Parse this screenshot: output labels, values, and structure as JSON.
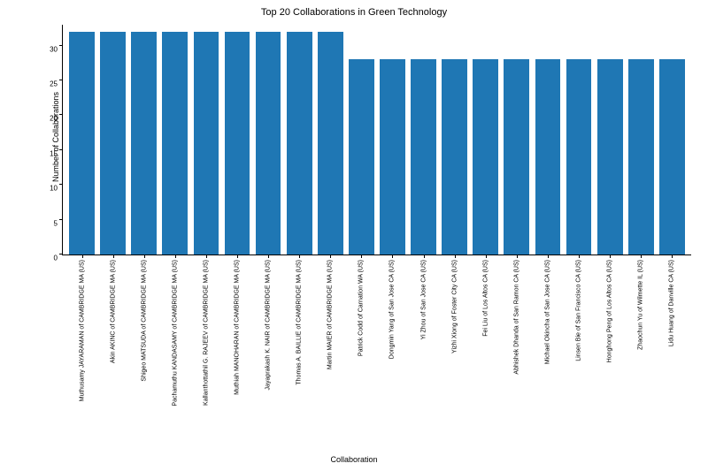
{
  "chart": {
    "type": "bar",
    "title": "Top 20 Collaborations in Green Technology",
    "title_fontsize": 11,
    "xlabel": "Collaboration",
    "ylabel": "Number of Collaborations",
    "label_fontsize": 9,
    "tick_fontsize": 8,
    "xtick_fontsize": 7,
    "background_color": "#ffffff",
    "bar_color": "#1f77b4",
    "axis_color": "#000000",
    "bar_width": 0.82,
    "ylim": [
      0,
      33
    ],
    "yticks": [
      0,
      5,
      10,
      15,
      20,
      25,
      30
    ],
    "categories": [
      "Muthusamy JAYARAMAN of CAMBRIDGE MA (US)",
      "Akin AKINC of CAMBRIDGE MA (US)",
      "Shigeo MATSUDA of CAMBRIDGE MA (US)",
      "Pachamuthu KANDASAMY of CAMBRIDGE MA (US)",
      "Kallanthottathil G. RAJEEV of CAMBRIDGE MA (US)",
      "Muthiah MANOHARAN of CAMBRIDGE MA (US)",
      "Jayaprakash K. NAIR of CAMBRIDGE MA (US)",
      "Thomas A. BAILLIE of CAMBRIDGE MA (US)",
      "Martin MAIER of CAMBRIDGE MA (US)",
      "Patrick Codd of Carnation WA (US)",
      "Dongmin Yang of San Jose CA (US)",
      "Yi Zhou of San Jose CA (US)",
      "Yizhi Xiong of Foster City CA (US)",
      "Fei Liu of Los Altos CA (US)",
      "Abhishek Dhanda of San Ramon CA (US)",
      "Michael Okincha of San Jose CA (US)",
      "Linsen Bie of San Francisco CA (US)",
      "Honghong Peng of Los Altos CA (US)",
      "Zhaochun Yu of Wilmette IL (US)",
      "Lidu Huang of Danville CA (US)"
    ],
    "values": [
      32,
      32,
      32,
      32,
      32,
      32,
      32,
      32,
      32,
      28,
      28,
      28,
      28,
      28,
      28,
      28,
      28,
      28,
      28,
      28
    ]
  }
}
